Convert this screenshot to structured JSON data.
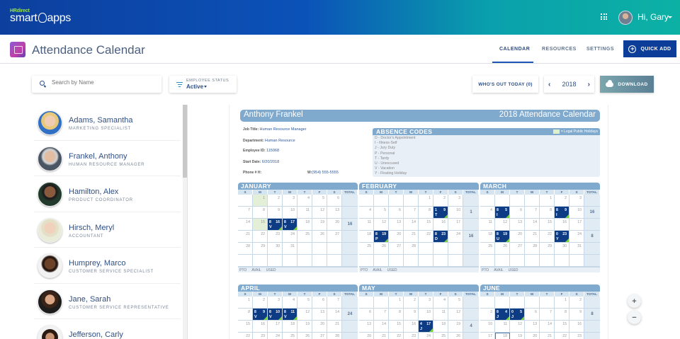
{
  "topbar": {
    "logo_top": "HRdirect",
    "logo_main_left": "smart",
    "logo_main_right": "apps",
    "greeting": "Hi, Gary"
  },
  "subbar": {
    "app_title": "Attendance Calendar",
    "tabs": [
      {
        "label": "CALENDAR",
        "active": true
      },
      {
        "label": "RESOURCES",
        "active": false
      },
      {
        "label": "SETTINGS",
        "active": false
      }
    ],
    "quick_add_label": "QUICK ADD"
  },
  "toolbar": {
    "search_placeholder": "Search by Name",
    "status_label": "EMPLOYEE STATUS",
    "status_value": "Active",
    "whos_out_label": "WHO'S OUT TODAY (0)",
    "year": "2018",
    "download_label": "DOWNLOAD"
  },
  "employees": [
    {
      "name": "Adams, Samantha",
      "title": "MARKETING SPECIALIST"
    },
    {
      "name": "Frankel, Anthony",
      "title": "HUMAN RESOURCE MANAGER"
    },
    {
      "name": "Hamilton, Alex",
      "title": "PRODUCT COORDINATOR"
    },
    {
      "name": "Hirsch, Meryl",
      "title": "ACCOUNTANT"
    },
    {
      "name": "Humprey, Marco",
      "title": "CUSTOMER SERVICE SPECIALIST"
    },
    {
      "name": "Jane, Sarah",
      "title": "CUSTOMER SERVICE REPRESENTATIVE"
    },
    {
      "name": "Jefferson, Carly",
      "title": ""
    }
  ],
  "calendar": {
    "employee_name": "Anthony Frankel",
    "title": "2018 Attendance Calendar",
    "info": {
      "job_title_label": "Job Title:",
      "job_title": "Human Resource Manager",
      "department_label": "Department:",
      "department": "Human Resource",
      "employee_id_label": "Employee ID:",
      "employee_id": "115068",
      "start_date_label": "Start Date:",
      "start_date": "6/20/2018",
      "phone_h_label": "Phone # H:",
      "phone_h": "",
      "phone_w_label": "W:",
      "phone_w": "(954) 555-5555"
    },
    "absence_codes_title": "ABSENCE CODES",
    "holiday_legend": "= Legal Public Holidays",
    "absence_codes": [
      "D - Doctor's Appointment",
      "I - Illness-Self",
      "J - Jury Duty",
      "P - Personal",
      "T - Tardy",
      "U - Unexcused",
      "V - Vacation",
      "Y - Floating Holiday"
    ],
    "dow": [
      "S",
      "M",
      "T",
      "W",
      "T",
      "F",
      "S",
      "TOTAL"
    ],
    "footer": [
      "PTO",
      "AVAIL",
      "USED"
    ],
    "months": [
      {
        "name": "JANUARY",
        "weeks": [
          {
            "days": [
              "",
              "1",
              "2",
              "3",
              "4",
              "5",
              "6"
            ],
            "total": ""
          },
          {
            "days": [
              "7",
              "8",
              "9",
              "10",
              "11",
              "12",
              "13"
            ],
            "total": ""
          },
          {
            "days": [
              "14",
              "15",
              "16",
              "17",
              "18",
              "19",
              "20"
            ],
            "total": "16"
          },
          {
            "days": [
              "21",
              "22",
              "23",
              "24",
              "25",
              "26",
              "27"
            ],
            "total": ""
          },
          {
            "days": [
              "28",
              "29",
              "30",
              "31",
              "",
              "",
              ""
            ],
            "total": ""
          },
          {
            "days": [
              "",
              "",
              "",
              "",
              "",
              "",
              ""
            ],
            "total": ""
          }
        ],
        "holidays": [
          "1",
          "15"
        ],
        "absences": [
          {
            "day": "16",
            "hours": "8",
            "code": "V"
          },
          {
            "day": "17",
            "hours": "8",
            "code": "V"
          }
        ]
      },
      {
        "name": "FEBRUARY",
        "weeks": [
          {
            "days": [
              "",
              "",
              "",
              "",
              "1",
              "2",
              "3"
            ],
            "total": ""
          },
          {
            "days": [
              "4",
              "5",
              "6",
              "7",
              "8",
              "9",
              "10"
            ],
            "total": "1"
          },
          {
            "days": [
              "11",
              "12",
              "13",
              "14",
              "15",
              "16",
              "17"
            ],
            "total": ""
          },
          {
            "days": [
              "18",
              "19",
              "20",
              "21",
              "22",
              "23",
              "24"
            ],
            "total": "16"
          },
          {
            "days": [
              "25",
              "26",
              "27",
              "28",
              "",
              "",
              ""
            ],
            "total": ""
          },
          {
            "days": [
              "",
              "",
              "",
              "",
              "",
              "",
              ""
            ],
            "total": ""
          }
        ],
        "holidays": [],
        "absences": [
          {
            "day": "9",
            "hours": "1",
            "code": "T"
          },
          {
            "day": "19",
            "hours": "8",
            "code": "P"
          },
          {
            "day": "23",
            "hours": "8",
            "code": "D"
          }
        ]
      },
      {
        "name": "MARCH",
        "weeks": [
          {
            "days": [
              "",
              "",
              "",
              "",
              "1",
              "2",
              "3"
            ],
            "total": ""
          },
          {
            "days": [
              "4",
              "5",
              "6",
              "7",
              "8",
              "9",
              "10"
            ],
            "total": "16"
          },
          {
            "days": [
              "11",
              "12",
              "13",
              "14",
              "15",
              "16",
              "17"
            ],
            "total": ""
          },
          {
            "days": [
              "18",
              "19",
              "20",
              "21",
              "22",
              "23",
              "24"
            ],
            "total": "8"
          },
          {
            "days": [
              "25",
              "26",
              "27",
              "28",
              "29",
              "30",
              "31"
            ],
            "total": ""
          },
          {
            "days": [
              "",
              "",
              "",
              "",
              "",
              "",
              ""
            ],
            "total": ""
          }
        ],
        "holidays": [],
        "absences": [
          {
            "day": "5",
            "hours": "8",
            "code": "I"
          },
          {
            "day": "9",
            "hours": "8",
            "code": "I"
          },
          {
            "day": "19",
            "hours": "8",
            "code": "U"
          },
          {
            "day": "23",
            "hours": "0",
            "code": "Y"
          }
        ]
      },
      {
        "name": "APRIL",
        "weeks": [
          {
            "days": [
              "1",
              "2",
              "3",
              "4",
              "5",
              "6",
              "7"
            ],
            "total": ""
          },
          {
            "days": [
              "8",
              "9",
              "10",
              "11",
              "12",
              "13",
              "14"
            ],
            "total": "24"
          },
          {
            "days": [
              "15",
              "16",
              "17",
              "18",
              "19",
              "20",
              "21"
            ],
            "total": ""
          },
          {
            "days": [
              "22",
              "23",
              "24",
              "25",
              "26",
              "27",
              "28"
            ],
            "total": ""
          }
        ],
        "holidays": [],
        "absences": [
          {
            "day": "9",
            "hours": "8",
            "code": "V"
          },
          {
            "day": "10",
            "hours": "8",
            "code": "V"
          },
          {
            "day": "11",
            "hours": "8",
            "code": "V"
          }
        ]
      },
      {
        "name": "MAY",
        "weeks": [
          {
            "days": [
              "",
              "",
              "1",
              "2",
              "3",
              "4",
              "5"
            ],
            "total": ""
          },
          {
            "days": [
              "6",
              "7",
              "8",
              "9",
              "10",
              "11",
              "12"
            ],
            "total": ""
          },
          {
            "days": [
              "13",
              "14",
              "15",
              "16",
              "17",
              "18",
              "19"
            ],
            "total": "4"
          },
          {
            "days": [
              "20",
              "21",
              "22",
              "23",
              "24",
              "25",
              "26"
            ],
            "total": ""
          }
        ],
        "holidays": [],
        "absences": [
          {
            "day": "17",
            "hours": "4",
            "code": "J"
          }
        ]
      },
      {
        "name": "JUNE",
        "weeks": [
          {
            "days": [
              "",
              "",
              "",
              "",
              "",
              "1",
              "2"
            ],
            "total": ""
          },
          {
            "days": [
              "3",
              "4",
              "5",
              "6",
              "7",
              "8",
              "9"
            ],
            "total": "8"
          },
          {
            "days": [
              "10",
              "11",
              "12",
              "13",
              "14",
              "15",
              "16"
            ],
            "total": ""
          },
          {
            "days": [
              "17",
              "18",
              "19",
              "20",
              "21",
              "22",
              "23"
            ],
            "total": ""
          }
        ],
        "holidays": [],
        "today": "18",
        "absences": [
          {
            "day": "4",
            "hours": "8",
            "code": "J"
          },
          {
            "day": "5",
            "hours": "0",
            "code": "J"
          }
        ]
      }
    ]
  },
  "zoom_controls": {
    "in": "+",
    "out": "−"
  },
  "colors": {
    "brand_dark": "#0c3d98",
    "header_gradient_end": "#0cb1a4",
    "month_header": "#7fa9cd",
    "absence_cell": "#0d3b84",
    "holiday_cell": "#e3efd6",
    "absence_marker": "#7ad23b"
  }
}
